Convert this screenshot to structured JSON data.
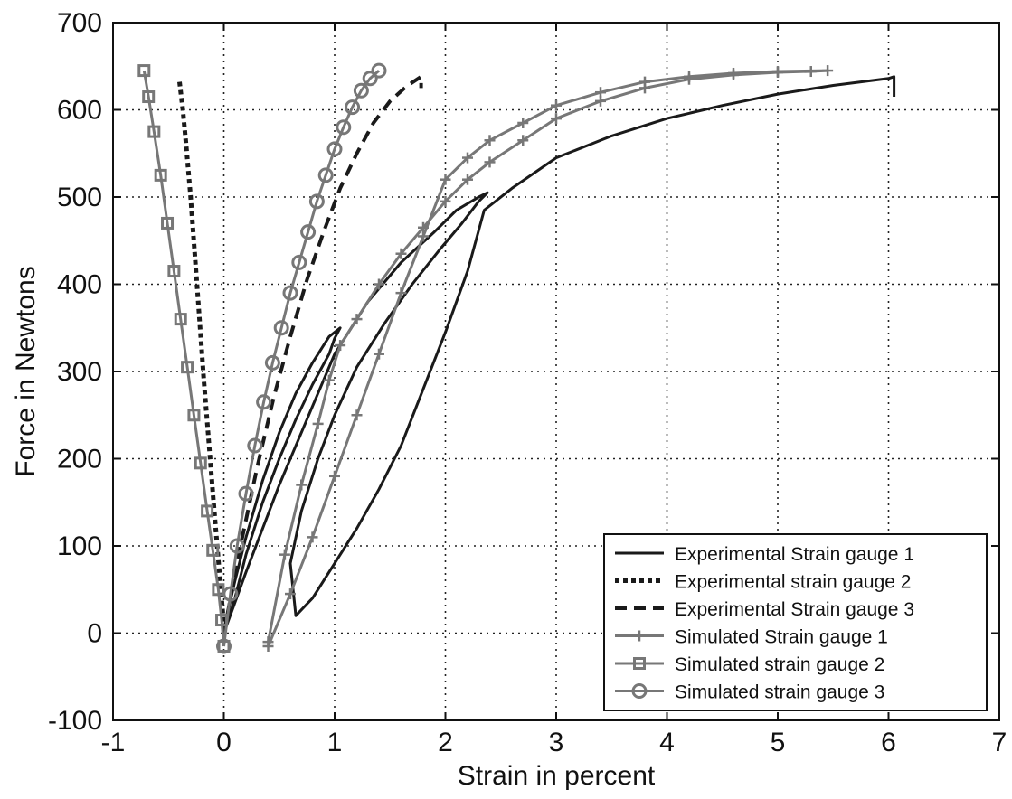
{
  "chart_data": {
    "type": "line",
    "title": "",
    "xlabel": "Strain in percent",
    "ylabel": "Force in Newtons",
    "xlim": [
      -1,
      7
    ],
    "ylim": [
      -100,
      700
    ],
    "x_ticks": [
      "-1",
      "0",
      "1",
      "2",
      "3",
      "4",
      "5",
      "6",
      "7"
    ],
    "y_ticks": [
      "-100",
      "0",
      "100",
      "200",
      "300",
      "400",
      "500",
      "600",
      "700"
    ],
    "grid": true,
    "legend_position": "bottom-right",
    "series": [
      {
        "name": "Experimental Strain gauge 1",
        "style": "solid",
        "marker": "none",
        "color": "#1a1a1a",
        "x": [
          0.0,
          0.1,
          0.2,
          0.35,
          0.5,
          0.65,
          0.8,
          0.95,
          1.0,
          1.05,
          0.95,
          0.8,
          0.65,
          0.5,
          0.35,
          0.2,
          0.1,
          0.02,
          0.0,
          0.2,
          0.5,
          0.8,
          1.0,
          1.3,
          1.6,
          1.9,
          2.1,
          2.3,
          2.38,
          2.3,
          2.15,
          1.95,
          1.7,
          1.45,
          1.2,
          1.0,
          0.85,
          0.7,
          0.6,
          0.65,
          0.8,
          1.0,
          1.2,
          1.4,
          1.6,
          1.8,
          2.0,
          2.2,
          2.35,
          2.6,
          3.0,
          3.5,
          4.0,
          4.5,
          5.0,
          5.5,
          6.0,
          6.05,
          6.05
        ],
        "y": [
          0,
          40,
          90,
          150,
          200,
          245,
          285,
          320,
          338,
          350,
          340,
          310,
          275,
          230,
          175,
          110,
          60,
          15,
          0,
          70,
          170,
          260,
          320,
          380,
          425,
          460,
          485,
          500,
          505,
          495,
          470,
          440,
          400,
          355,
          305,
          250,
          200,
          140,
          80,
          20,
          40,
          80,
          120,
          165,
          215,
          280,
          345,
          415,
          485,
          510,
          545,
          570,
          590,
          605,
          618,
          628,
          636,
          638,
          615
        ]
      },
      {
        "name": "Experimental strain gauge 2",
        "style": "dotted",
        "marker": "none",
        "color": "#1a1a1a",
        "x": [
          -0.4,
          -0.37,
          -0.34,
          -0.3,
          -0.26,
          -0.22,
          -0.18,
          -0.13,
          -0.08,
          -0.04,
          -0.01,
          0.0
        ],
        "y": [
          632,
          600,
          560,
          500,
          430,
          360,
          290,
          210,
          130,
          70,
          25,
          0
        ]
      },
      {
        "name": "Experimental Strain gauge 3",
        "style": "dashed",
        "marker": "none",
        "color": "#1a1a1a",
        "x": [
          0.0,
          0.15,
          0.3,
          0.45,
          0.6,
          0.75,
          0.9,
          1.05,
          1.2,
          1.35,
          1.5,
          1.65,
          1.78,
          1.78
        ],
        "y": [
          0,
          100,
          190,
          270,
          340,
          405,
          460,
          510,
          550,
          585,
          610,
          627,
          638,
          625
        ]
      },
      {
        "name": "Simulated Strain gauge 1",
        "style": "solid",
        "marker": "plus",
        "color": "#777777",
        "x": [
          0.4,
          0.6,
          0.8,
          1.0,
          1.2,
          1.4,
          1.6,
          1.8,
          2.0,
          2.2,
          2.4,
          2.7,
          3.0,
          3.4,
          3.8,
          4.2,
          4.6,
          5.0,
          5.45,
          5.3,
          5.0,
          4.6,
          4.2,
          3.8,
          3.4,
          3.0,
          2.7,
          2.4,
          2.2,
          2.0,
          1.8,
          1.6,
          1.4,
          1.2,
          1.05,
          0.95,
          0.85,
          0.7,
          0.55,
          0.4
        ],
        "y": [
          -15,
          45,
          110,
          180,
          250,
          320,
          390,
          455,
          520,
          545,
          565,
          585,
          605,
          620,
          632,
          638,
          642,
          644,
          645,
          644,
          643,
          640,
          635,
          625,
          610,
          590,
          565,
          540,
          520,
          495,
          465,
          435,
          400,
          360,
          330,
          290,
          240,
          170,
          90,
          -10
        ]
      },
      {
        "name": "Simulated strain gauge 2",
        "style": "solid",
        "marker": "square",
        "color": "#777777",
        "x": [
          -0.72,
          -0.68,
          -0.63,
          -0.57,
          -0.51,
          -0.45,
          -0.39,
          -0.33,
          -0.27,
          -0.21,
          -0.15,
          -0.1,
          -0.05,
          -0.02,
          0.0
        ],
        "y": [
          645,
          615,
          575,
          525,
          470,
          415,
          360,
          305,
          250,
          195,
          140,
          95,
          50,
          15,
          -15
        ]
      },
      {
        "name": "Simulated strain gauge 3",
        "style": "solid",
        "marker": "circle",
        "color": "#777777",
        "x": [
          0.0,
          0.06,
          0.12,
          0.2,
          0.28,
          0.36,
          0.44,
          0.52,
          0.6,
          0.68,
          0.76,
          0.84,
          0.92,
          1.0,
          1.08,
          1.16,
          1.24,
          1.32,
          1.4
        ],
        "y": [
          -15,
          45,
          100,
          160,
          215,
          265,
          310,
          350,
          390,
          425,
          460,
          495,
          525,
          555,
          580,
          603,
          622,
          636,
          645
        ]
      }
    ]
  }
}
